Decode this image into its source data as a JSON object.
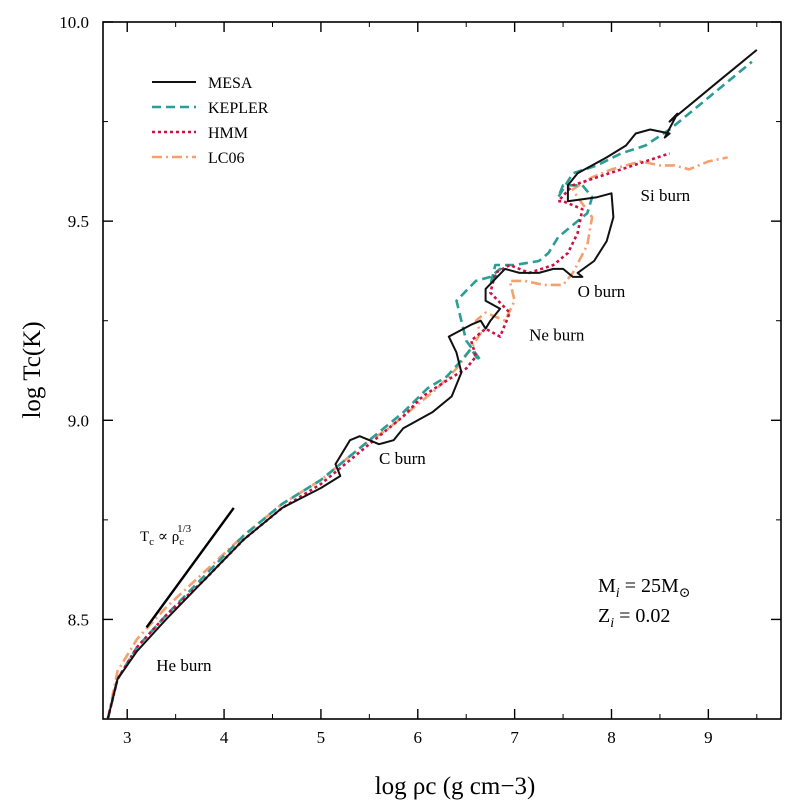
{
  "chart_data": {
    "type": "line",
    "xlabel": "log ρc (g cm−3)",
    "ylabel": "log Tc(K)",
    "xlim": [
      2.75,
      9.75
    ],
    "ylim": [
      8.25,
      10.0
    ],
    "x_ticks": [
      "3",
      "4",
      "5",
      "6",
      "7",
      "8",
      "9"
    ],
    "x_tick_values": [
      3,
      4,
      5,
      6,
      7,
      8,
      9
    ],
    "y_ticks": [
      "8.5",
      "9.0",
      "9.5",
      "10.0"
    ],
    "y_tick_values": [
      8.5,
      9.0,
      9.5,
      10.0
    ],
    "grid": false,
    "legend_placement": "top-left",
    "series": [
      {
        "name": "MESA",
        "color": "#111111",
        "dash": "solid",
        "x": [
          2.8,
          2.9,
          3.1,
          3.4,
          3.8,
          4.2,
          4.6,
          5.0,
          5.2,
          5.15,
          5.3,
          5.4,
          5.5,
          5.6,
          5.75,
          5.85,
          6.0,
          6.15,
          6.35,
          6.45,
          6.4,
          6.32,
          6.55,
          6.65,
          6.7,
          6.75,
          6.85,
          6.7,
          6.7,
          6.9,
          7.05,
          7.25,
          7.4,
          7.5,
          7.6,
          7.7,
          7.65,
          7.82,
          7.95,
          8.02,
          8.0,
          7.85,
          7.55,
          7.55,
          7.65,
          7.8,
          7.95,
          8.15,
          8.25,
          8.4,
          8.6,
          8.55,
          8.68,
          8.6,
          8.85,
          9.1,
          9.3,
          9.5
        ],
        "y": [
          8.25,
          8.35,
          8.42,
          8.5,
          8.6,
          8.7,
          8.78,
          8.83,
          8.86,
          8.89,
          8.95,
          8.96,
          8.95,
          8.94,
          8.95,
          8.98,
          9.0,
          9.02,
          9.06,
          9.12,
          9.17,
          9.21,
          9.24,
          9.25,
          9.23,
          9.25,
          9.28,
          9.3,
          9.33,
          9.38,
          9.37,
          9.37,
          9.38,
          9.38,
          9.36,
          9.36,
          9.37,
          9.4,
          9.45,
          9.51,
          9.57,
          9.56,
          9.55,
          9.59,
          9.62,
          9.64,
          9.66,
          9.69,
          9.72,
          9.73,
          9.72,
          9.71,
          9.77,
          9.75,
          9.8,
          9.85,
          9.89,
          9.93
        ]
      },
      {
        "name": "KEPLER",
        "color": "#2a9d96",
        "dash": "9,5",
        "x": [
          2.8,
          2.9,
          3.1,
          3.4,
          3.8,
          4.2,
          4.6,
          5.0,
          5.25,
          5.4,
          5.6,
          5.85,
          6.1,
          6.3,
          6.45,
          6.55,
          6.6,
          6.65,
          6.5,
          6.4,
          6.6,
          6.75,
          6.85,
          6.75,
          6.8,
          7.0,
          7.25,
          7.35,
          7.45,
          7.55,
          7.75,
          7.8,
          7.7,
          7.5,
          7.45,
          7.6,
          7.85,
          8.1,
          8.35,
          8.6,
          8.75,
          8.95,
          9.2,
          9.45
        ],
        "y": [
          8.25,
          8.35,
          8.43,
          8.51,
          8.61,
          8.71,
          8.79,
          8.85,
          8.9,
          8.93,
          8.97,
          9.02,
          9.08,
          9.11,
          9.15,
          9.18,
          9.16,
          9.15,
          9.2,
          9.3,
          9.35,
          9.36,
          9.38,
          9.34,
          9.39,
          9.39,
          9.4,
          9.42,
          9.46,
          9.48,
          9.52,
          9.56,
          9.59,
          9.59,
          9.56,
          9.62,
          9.64,
          9.67,
          9.69,
          9.73,
          9.76,
          9.8,
          9.85,
          9.9
        ]
      },
      {
        "name": "HMM",
        "color": "#cc1144",
        "dash": "3,3",
        "x": [
          2.8,
          2.9,
          3.1,
          3.4,
          3.8,
          4.2,
          4.6,
          5.0,
          5.25,
          5.4,
          5.6,
          5.85,
          6.05,
          6.3,
          6.5,
          6.6,
          6.55,
          6.7,
          6.85,
          6.95,
          6.75,
          6.8,
          6.95,
          7.15,
          7.4,
          7.55,
          7.65,
          7.7,
          7.5,
          7.45,
          7.6,
          7.85,
          8.1,
          8.35,
          8.6
        ],
        "y": [
          8.25,
          8.35,
          8.43,
          8.51,
          8.6,
          8.7,
          8.78,
          8.84,
          8.89,
          8.92,
          8.96,
          9.01,
          9.06,
          9.1,
          9.13,
          9.16,
          9.2,
          9.23,
          9.21,
          9.27,
          9.32,
          9.37,
          9.39,
          9.37,
          9.39,
          9.42,
          9.47,
          9.53,
          9.55,
          9.55,
          9.59,
          9.61,
          9.63,
          9.65,
          9.67
        ]
      },
      {
        "name": "LC06",
        "color": "#f4a06f",
        "dash": "10,4,2,4",
        "x": [
          2.8,
          2.9,
          3.1,
          3.4,
          3.8,
          4.2,
          4.6,
          5.0,
          5.25,
          5.45,
          5.7,
          5.95,
          6.2,
          6.4,
          6.55,
          6.65,
          6.6,
          6.7,
          6.9,
          7.0,
          6.95,
          7.1,
          7.3,
          7.5,
          7.6,
          7.75,
          7.8,
          7.65,
          7.6,
          7.8,
          8.0,
          8.3,
          8.5,
          8.65,
          8.8,
          8.9,
          9.0,
          9.2
        ],
        "y": [
          8.25,
          8.37,
          8.45,
          8.53,
          8.62,
          8.71,
          8.79,
          8.85,
          8.9,
          8.94,
          8.98,
          9.03,
          9.08,
          9.13,
          9.18,
          9.22,
          9.25,
          9.27,
          9.25,
          9.3,
          9.35,
          9.35,
          9.34,
          9.34,
          9.37,
          9.44,
          9.51,
          9.56,
          9.58,
          9.61,
          9.63,
          9.65,
          9.64,
          9.64,
          9.63,
          9.64,
          9.65,
          9.66
        ]
      }
    ],
    "reference_line": {
      "label_base": "T",
      "label_sub": "c",
      "label_rel": " ∝ ρ",
      "label_sub2": "c",
      "label_sup": "1/3",
      "x": [
        3.2,
        4.1
      ],
      "y": [
        8.48,
        8.78
      ]
    },
    "annotations": [
      {
        "text": "He burn",
        "x": 3.3,
        "y": 8.37
      },
      {
        "text": "C burn",
        "x": 5.6,
        "y": 8.89
      },
      {
        "text": "Ne burn",
        "x": 7.15,
        "y": 9.2
      },
      {
        "text": "O burn",
        "x": 7.65,
        "y": 9.31
      },
      {
        "text": "Si burn",
        "x": 8.3,
        "y": 9.55
      }
    ],
    "params": {
      "mass_label": "M",
      "mass_sub": "i",
      "mass_value": " = 25M",
      "mass_sun": "⊙",
      "z_label": "Z",
      "z_sub": "i",
      "z_value": " = 0.02"
    }
  }
}
